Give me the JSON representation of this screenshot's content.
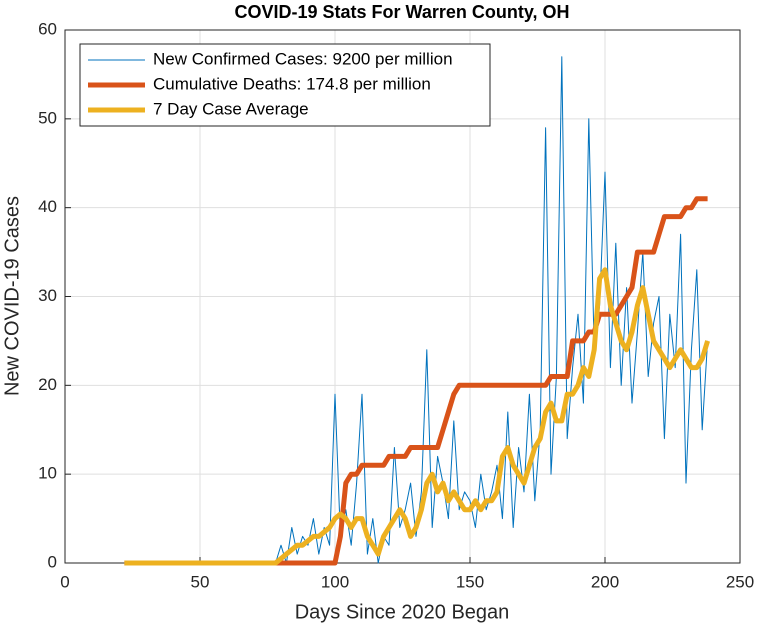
{
  "chart_data": {
    "type": "line",
    "title": "COVID-19 Stats For Warren County, OH",
    "xlabel": "Days Since 2020 Began",
    "ylabel": "New COVID-19 Cases",
    "x": [
      22,
      24,
      26,
      28,
      30,
      32,
      34,
      36,
      38,
      40,
      42,
      44,
      46,
      48,
      50,
      52,
      54,
      56,
      58,
      60,
      62,
      64,
      66,
      68,
      70,
      72,
      74,
      76,
      78,
      80,
      82,
      84,
      86,
      88,
      90,
      92,
      94,
      96,
      98,
      100,
      102,
      104,
      106,
      108,
      110,
      112,
      114,
      116,
      118,
      120,
      122,
      124,
      126,
      128,
      130,
      132,
      134,
      136,
      138,
      140,
      142,
      144,
      146,
      148,
      150,
      152,
      154,
      156,
      158,
      160,
      162,
      164,
      166,
      168,
      170,
      172,
      174,
      176,
      178,
      180,
      182,
      184,
      186,
      188,
      190,
      192,
      194,
      196,
      198,
      200,
      202,
      204,
      206,
      208,
      210,
      212,
      214,
      216,
      218,
      220,
      222,
      224,
      226,
      228,
      230,
      232,
      234,
      236,
      238
    ],
    "series": [
      {
        "name": "New Confirmed Cases: 9200 per million",
        "color": "#0072BD",
        "width": 1,
        "values": [
          0,
          0,
          0,
          0,
          0,
          0,
          0,
          0,
          0,
          0,
          0,
          0,
          0,
          0,
          0,
          0,
          0,
          0,
          0,
          0,
          0,
          0,
          0,
          0,
          0,
          0,
          0,
          0,
          0,
          2,
          0,
          4,
          1,
          3,
          2,
          5,
          1,
          4,
          2,
          19,
          3,
          6,
          2,
          9,
          19,
          1,
          5,
          0,
          3,
          2,
          13,
          4,
          6,
          9,
          3,
          8,
          24,
          4,
          12,
          9,
          5,
          16,
          6,
          8,
          7,
          4,
          10,
          6,
          8,
          11,
          5,
          17,
          4,
          13,
          8,
          19,
          7,
          15,
          49,
          10,
          21,
          57,
          14,
          22,
          28,
          18,
          50,
          24,
          29,
          44,
          22,
          36,
          20,
          31,
          18,
          26,
          35,
          21,
          27,
          30,
          14,
          28,
          22,
          37,
          9,
          24,
          33,
          15,
          25
        ]
      },
      {
        "name": "Cumulative Deaths: 174.8 per million",
        "color": "#D95319",
        "width": 5,
        "values": [
          0,
          0,
          0,
          0,
          0,
          0,
          0,
          0,
          0,
          0,
          0,
          0,
          0,
          0,
          0,
          0,
          0,
          0,
          0,
          0,
          0,
          0,
          0,
          0,
          0,
          0,
          0,
          0,
          0,
          0,
          0,
          0,
          0,
          0,
          0,
          0,
          0,
          0,
          0,
          0,
          3,
          9,
          10,
          10,
          11,
          11,
          11,
          11,
          11,
          12,
          12,
          12,
          12,
          13,
          13,
          13,
          13,
          13,
          13,
          15,
          17,
          19,
          20,
          20,
          20,
          20,
          20,
          20,
          20,
          20,
          20,
          20,
          20,
          20,
          20,
          20,
          20,
          20,
          20,
          21,
          21,
          21,
          21,
          25,
          25,
          25,
          26,
          26,
          28,
          28,
          28,
          28,
          29,
          30,
          31,
          35,
          35,
          35,
          35,
          37,
          39,
          39,
          39,
          39,
          40,
          40,
          41,
          41,
          41
        ]
      },
      {
        "name": "7 Day Case Average",
        "color": "#EDB120",
        "width": 5,
        "values": [
          0,
          0,
          0,
          0,
          0,
          0,
          0,
          0,
          0,
          0,
          0,
          0,
          0,
          0,
          0,
          0,
          0,
          0,
          0,
          0,
          0,
          0,
          0,
          0,
          0,
          0,
          0,
          0,
          0,
          0.5,
          1,
          1.5,
          2,
          2,
          2.5,
          3,
          3,
          3.5,
          4,
          5,
          5.5,
          5,
          4,
          5,
          5,
          3,
          2,
          1,
          3,
          4,
          5,
          6,
          5,
          3,
          4,
          6,
          9,
          10,
          8,
          9,
          7,
          8,
          7,
          6,
          6,
          7,
          6,
          7,
          7,
          8,
          12,
          13,
          11,
          10,
          9,
          11,
          13,
          14,
          17,
          18,
          16,
          16,
          19,
          19,
          20,
          22,
          21,
          24,
          32,
          33,
          29,
          27,
          25,
          24,
          26,
          29,
          31,
          28,
          25,
          24,
          23,
          22,
          23,
          24,
          23,
          22,
          22,
          23,
          25
        ]
      }
    ],
    "xlim": [
      0,
      250
    ],
    "xticks": [
      0,
      50,
      100,
      150,
      200,
      250
    ],
    "ylim": [
      0,
      60
    ],
    "yticks": [
      0,
      10,
      20,
      30,
      40,
      50,
      60
    ],
    "grid": true,
    "legend": "top-left"
  }
}
